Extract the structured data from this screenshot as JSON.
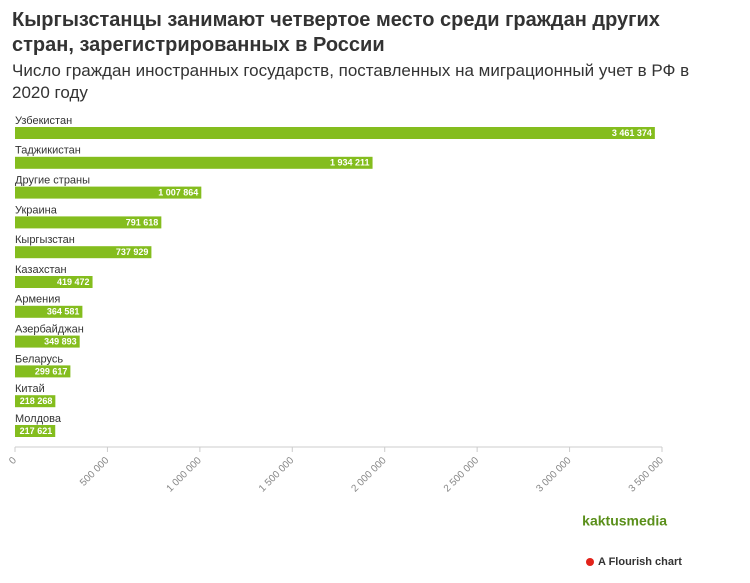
{
  "chart_data": {
    "type": "bar",
    "orientation": "horizontal",
    "title": "Кыргызстанцы занимают четвертое место среди граждан других стран, зарегистрированных в России",
    "subtitle": "Число граждан иностранных государств, поставленных на миграционный учет в РФ в 2020 году",
    "categories": [
      "Узбекистан",
      "Таджикистан",
      "Другие страны",
      "Украина",
      "Кыргызстан",
      "Казахстан",
      "Армения",
      "Азербайджан",
      "Беларусь",
      "Китай",
      "Молдова"
    ],
    "values": [
      3461374,
      1934211,
      1007864,
      791618,
      737929,
      419472,
      364581,
      349893,
      299617,
      218268,
      217621
    ],
    "value_labels": [
      "3 461 374",
      "1 934 211",
      "1 007 864",
      "791 618",
      "737 929",
      "419 472",
      "364 581",
      "349 893",
      "299 617",
      "218 268",
      "217 621"
    ],
    "color": "#84bd1e",
    "xlim": [
      0,
      3500000
    ],
    "xticks": [
      0,
      {
        "value": 500000,
        "label": "500 000"
      },
      {
        "value": 1000000,
        "label": "1 000 000"
      },
      {
        "value": 1500000,
        "label": "1 500 000"
      },
      {
        "value": 2000000,
        "label": "2 000 000"
      },
      {
        "value": 2500000,
        "label": "2 500 000"
      },
      {
        "value": 3000000,
        "label": "3 000 000"
      },
      {
        "value": 3500000,
        "label": "3 500 000"
      }
    ],
    "logo": "kaktusmedia",
    "footer": "A Flourish chart"
  }
}
